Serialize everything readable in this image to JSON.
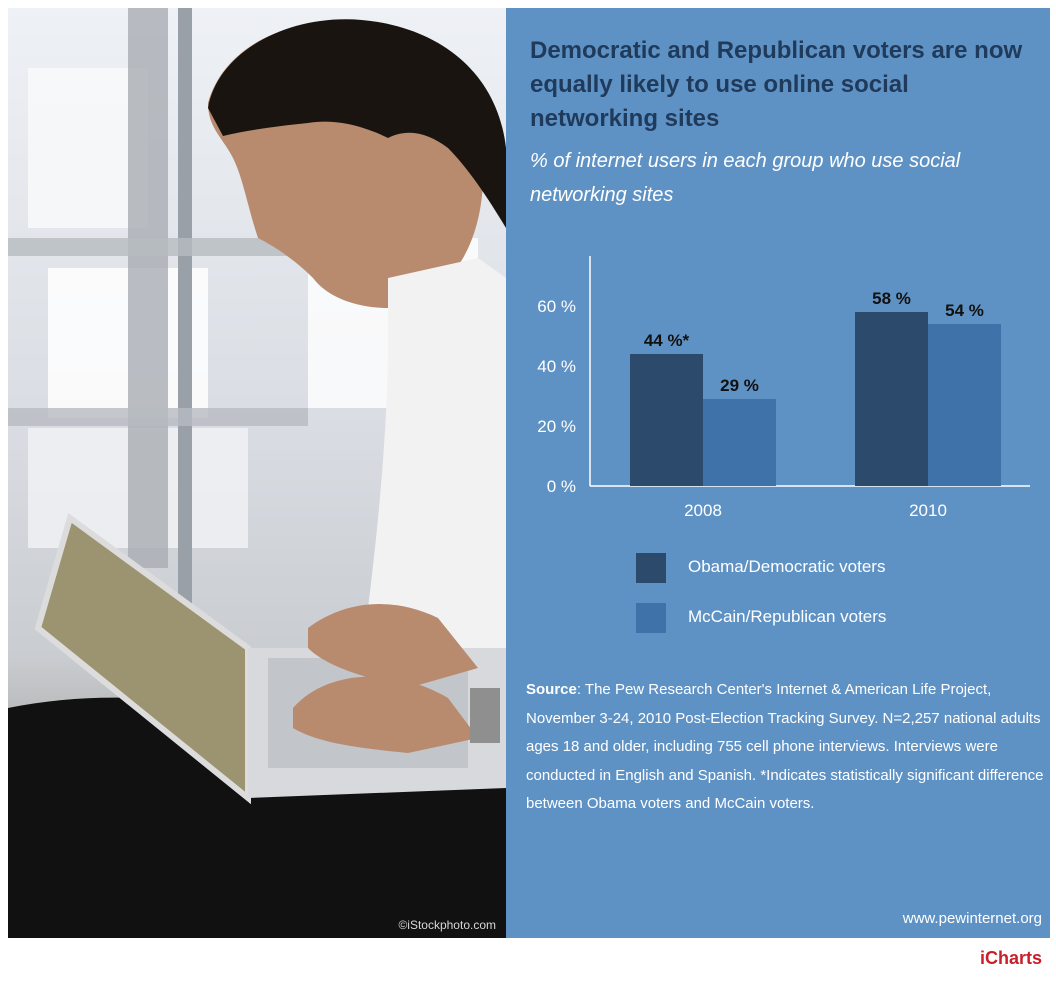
{
  "title": "Democratic and Republican voters are now equally likely to use online social networking sites",
  "subtitle": "% of internet users in each group who use social networking sites",
  "photo_credit": "©iStockphoto.com",
  "source_label": "Source",
  "source_text": ": The Pew Research Center's Internet & American Life Project, November 3-24, 2010 Post-Election Tracking Survey. N=2,257 national adults ages 18 and older, including 755 cell phone interviews. Interviews were conducted in English and Spanish. *Indicates statistically significant difference between Obama voters and McCain voters.",
  "website": "www.pewinternet.org",
  "brand": "iCharts",
  "colors": {
    "panel": "#5f92c4",
    "obama": "#2c4a6c",
    "mccain": "#3f72a8",
    "title": "#1f3a5a",
    "brand": "#c8202a"
  },
  "chart_data": {
    "type": "bar",
    "categories": [
      "2008",
      "2010"
    ],
    "series": [
      {
        "name": "Obama/Democratic voters",
        "values": [
          44,
          58
        ],
        "labels": [
          "44 %*",
          "58 %"
        ],
        "color": "#2c4a6c"
      },
      {
        "name": "McCain/Republican voters",
        "values": [
          29,
          54
        ],
        "labels": [
          "29 %",
          "54 %"
        ],
        "color": "#3f72a8"
      }
    ],
    "ylim": [
      0,
      60
    ],
    "yticks": [
      0,
      20,
      40,
      60
    ],
    "ytick_labels": [
      "0 %",
      "20 %",
      "40 %",
      "60 %"
    ],
    "legend": "bottom",
    "grid": false
  }
}
